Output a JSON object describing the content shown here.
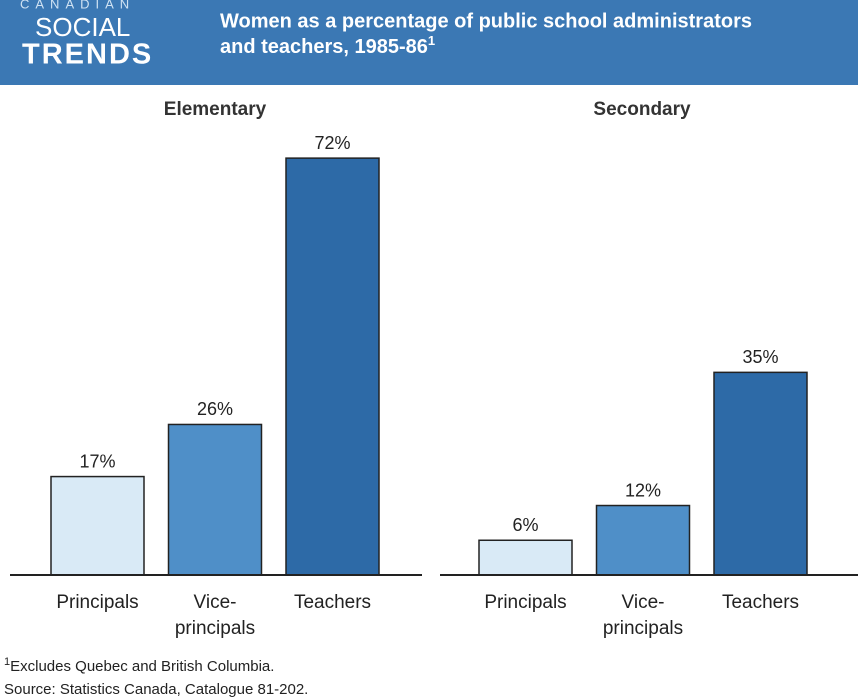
{
  "header": {
    "logo": [
      "CANADIAN",
      "SOCIAL",
      "TRENDS"
    ],
    "title_lines": [
      "Women as a percentage of public school administrators",
      "and teachers, 1985-86"
    ],
    "title_mark": "1"
  },
  "chart_data": [
    {
      "type": "bar",
      "title": "Elementary",
      "categories": [
        "Principals",
        "Vice-principals",
        "Teachers"
      ],
      "values": [
        17,
        26,
        72
      ],
      "value_labels": [
        "17%",
        "26%",
        "72%"
      ],
      "colors": [
        "#d9eaf6",
        "#4f8fc8",
        "#2d6aa7"
      ]
    },
    {
      "type": "bar",
      "title": "Secondary",
      "categories": [
        "Principals",
        "Vice-principals",
        "Teachers"
      ],
      "values": [
        6,
        12,
        35
      ],
      "value_labels": [
        "6%",
        "12%",
        "35%"
      ],
      "colors": [
        "#d9eaf6",
        "#4f8fc8",
        "#2d6aa7"
      ]
    }
  ],
  "footnote": {
    "mark": "1",
    "text": "Excludes Quebec and British Columbia."
  },
  "source": "Source: Statistics Canada, Catalogue 81-202."
}
